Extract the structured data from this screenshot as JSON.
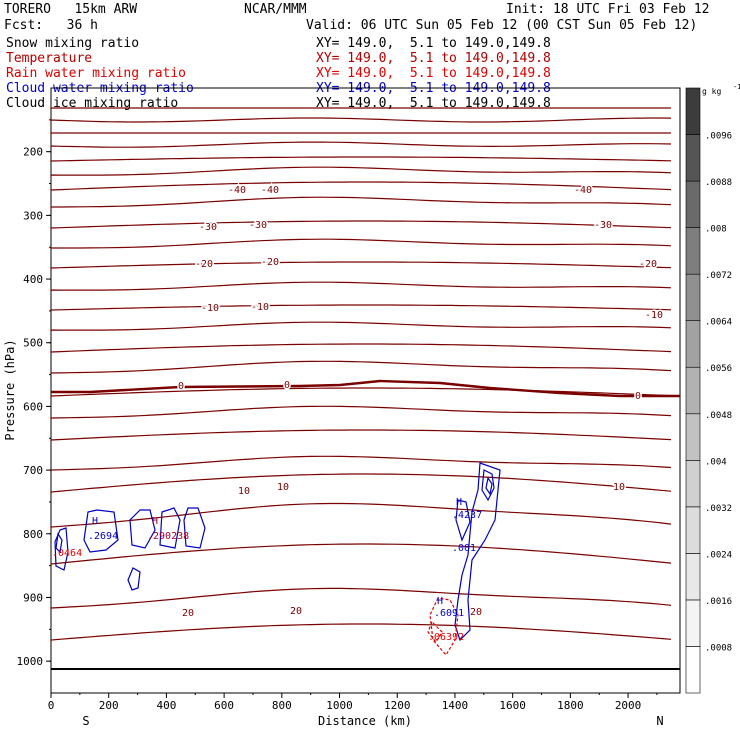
{
  "header": {
    "model": "TORERO   15km ARW",
    "org": "NCAR/MMM",
    "init": "Init: 18 UTC Fri 03 Feb 12",
    "fcst": "Fcst:   36 h",
    "valid": "Valid: 06 UTC Sun 05 Feb 12 (00 CST Sun 05 Feb 12)"
  },
  "fields": [
    {
      "name": "Snow mixing ratio",
      "xy": "XY= 149.0,  5.1 to 149.0,149.8",
      "color": "#000000"
    },
    {
      "name": "Temperature",
      "xy": "XY= 149.0,  5.1 to 149.0,149.8",
      "color": "#b00000"
    },
    {
      "name": "Rain water mixing ratio",
      "xy": "XY= 149.0,  5.1 to 149.0,149.8",
      "color": "#e00000"
    },
    {
      "name": "Cloud water mixing ratio",
      "xy": "XY= 149.0,  5.1 to 149.0,149.8",
      "color": "#0000c0"
    },
    {
      "name": "Cloud ice mixing ratio",
      "xy": "XY= 149.0,  5.1 to 149.0,149.8",
      "color": "#000000"
    }
  ],
  "chart_data": {
    "type": "contour cross-section",
    "xlabel": "Distance (km)",
    "ylabel": "Pressure (hPa)",
    "xlim": [
      0,
      2180
    ],
    "ylim": [
      100,
      1050
    ],
    "x_ticks": [
      0,
      200,
      400,
      600,
      800,
      1000,
      1200,
      1400,
      1600,
      1800,
      2000
    ],
    "y_ticks": [
      200,
      300,
      400,
      500,
      600,
      700,
      800,
      900,
      1000
    ],
    "x_end_labels": {
      "left": "S",
      "right": "N"
    },
    "colorbar": {
      "units": "g kg",
      "units_exp": "-1",
      "ticks": [
        ".0008",
        ".0016",
        ".0024",
        ".0032",
        ".004",
        ".0048",
        ".0056",
        ".0064",
        ".0072",
        ".008",
        ".0088",
        ".0096"
      ],
      "shades": [
        "#ffffff",
        "#f4f4f4",
        "#e8e8e8",
        "#dcdcdc",
        "#d0d0d0",
        "#c2c2c2",
        "#b2b2b2",
        "#a2a2a2",
        "#909090",
        "#7e7e7e",
        "#6a6a6a",
        "#555555",
        "#3c3c3c"
      ]
    },
    "isotherm_labels": [
      "-40",
      "-30",
      "-20",
      "-10",
      "0",
      "10",
      "20"
    ],
    "extrema_labels": [
      {
        "text": "H",
        "color": "#0000c0"
      },
      {
        "text": ".2694",
        "color": "#0000c0"
      },
      {
        "text": "H",
        "color": "#a00030"
      },
      {
        "text": ".290238",
        "color": "#a00030"
      },
      {
        "text": ".0464",
        "color": "#e00000"
      },
      {
        "text": "H",
        "color": "#0000c0"
      },
      {
        "text": ".4237",
        "color": "#0000c0"
      },
      {
        "text": ".001",
        "color": "#0000c0"
      },
      {
        "text": "H",
        "color": "#0000c0"
      },
      {
        "text": ".6091",
        "color": "#0000c0"
      },
      {
        "text": ".06392",
        "color": "#e00000"
      }
    ]
  }
}
